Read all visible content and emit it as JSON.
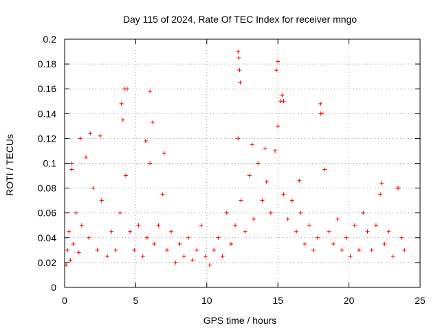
{
  "chart_data": {
    "type": "scatter",
    "title": "Day 115 of 2024, Rate Of TEC Index for receiver mngo",
    "xlabel": "GPS time / hours",
    "ylabel": "ROTI / TECUs",
    "xlim": [
      0,
      25
    ],
    "ylim": [
      0,
      0.2
    ],
    "x_ticks": [
      "0",
      "5",
      "10",
      "15",
      "20",
      "25"
    ],
    "y_ticks": [
      "0",
      "0.02",
      "0.04",
      "0.06",
      "0.08",
      "0.1",
      "0.12",
      "0.14",
      "0.16",
      "0.18",
      "0.2"
    ],
    "grid": true,
    "legend": "none",
    "marker": "plus",
    "color": "#ff0000",
    "series": [
      {
        "x": [
          0.1,
          0.2,
          0.3,
          0.4,
          0.5,
          0.6,
          0.8,
          1.0,
          1.2,
          1.5,
          1.7,
          2.0,
          2.3,
          2.6,
          3.0,
          3.3,
          3.6,
          3.9,
          4.1,
          4.3,
          4.6,
          4.9,
          5.2,
          5.5,
          5.8,
          6.0,
          6.3,
          6.6,
          6.9,
          7.2,
          7.5,
          7.8,
          8.1,
          8.4,
          8.7,
          9.0,
          9.3,
          9.6,
          9.9,
          10.2,
          10.5,
          10.8,
          11.1,
          11.4,
          11.7,
          12.0,
          12.2,
          12.4,
          12.7,
          13.0,
          13.3,
          13.6,
          13.9,
          14.2,
          14.5,
          14.8,
          15.0,
          15.2,
          15.4,
          15.7,
          16.0,
          16.3,
          16.6,
          16.9,
          17.2,
          17.5,
          17.8,
          18.0,
          18.3,
          18.6,
          18.9,
          19.2,
          19.5,
          19.8,
          20.1,
          20.4,
          20.7,
          21.0,
          21.3,
          21.6,
          21.9,
          22.2,
          22.5,
          22.8,
          23.1,
          23.4,
          23.7,
          23.9,
          0.5,
          1.1,
          1.8,
          4.0,
          4.2,
          4.4,
          6.0,
          6.2,
          12.2,
          12.25,
          12.3,
          12.35,
          14.9,
          15.0,
          15.3,
          15.4,
          18.0,
          18.1,
          2.5,
          5.7,
          7.0,
          13.2,
          14.1,
          16.5,
          22.3,
          23.5
        ],
        "y": [
          0.018,
          0.03,
          0.045,
          0.022,
          0.095,
          0.035,
          0.06,
          0.028,
          0.05,
          0.105,
          0.04,
          0.08,
          0.03,
          0.07,
          0.025,
          0.045,
          0.03,
          0.06,
          0.135,
          0.09,
          0.045,
          0.03,
          0.05,
          0.025,
          0.04,
          0.1,
          0.035,
          0.05,
          0.075,
          0.03,
          0.045,
          0.02,
          0.035,
          0.025,
          0.04,
          0.022,
          0.03,
          0.05,
          0.025,
          0.018,
          0.03,
          0.04,
          0.025,
          0.06,
          0.035,
          0.05,
          0.12,
          0.07,
          0.045,
          0.09,
          0.055,
          0.1,
          0.07,
          0.085,
          0.06,
          0.11,
          0.13,
          0.15,
          0.075,
          0.055,
          0.07,
          0.045,
          0.06,
          0.035,
          0.05,
          0.03,
          0.04,
          0.14,
          0.095,
          0.045,
          0.035,
          0.055,
          0.03,
          0.04,
          0.025,
          0.05,
          0.03,
          0.06,
          0.045,
          0.03,
          0.05,
          0.075,
          0.035,
          0.045,
          0.025,
          0.08,
          0.04,
          0.03,
          0.1,
          0.12,
          0.124,
          0.148,
          0.16,
          0.16,
          0.158,
          0.133,
          0.19,
          0.185,
          0.175,
          0.165,
          0.175,
          0.182,
          0.155,
          0.15,
          0.148,
          0.14,
          0.122,
          0.118,
          0.108,
          0.115,
          0.112,
          0.086,
          0.084,
          0.08
        ]
      }
    ]
  }
}
